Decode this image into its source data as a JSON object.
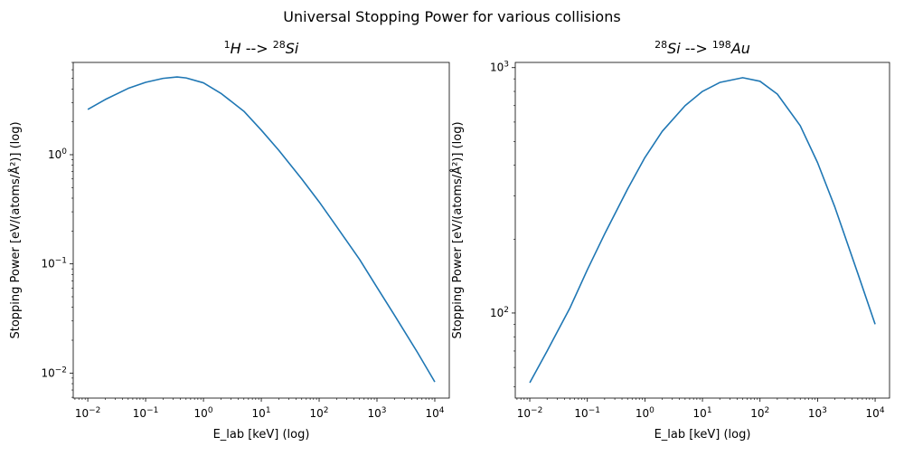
{
  "suptitle": "Universal Stopping Power for various collisions",
  "chart_data": [
    {
      "type": "line",
      "title_parts": [
        {
          "text": "1",
          "sup": true
        },
        {
          "text": "H",
          "italic": true
        },
        {
          "text": " --> "
        },
        {
          "text": "28",
          "sup": true
        },
        {
          "text": "Si",
          "italic": true
        }
      ],
      "xlabel": "E_lab [keV] (log)",
      "ylabel": "Stopping Power [eV/(atoms/Å²)] (log)",
      "xscale": "log",
      "yscale": "log",
      "xlim": [
        0.0056,
        17800
      ],
      "ylim": [
        0.0059,
        7.0
      ],
      "xticks": [
        {
          "value": 0.01,
          "mant": "10",
          "exp": "−2"
        },
        {
          "value": 0.1,
          "mant": "10",
          "exp": "−1"
        },
        {
          "value": 1,
          "mant": "10",
          "exp": "0"
        },
        {
          "value": 10,
          "mant": "10",
          "exp": "1"
        },
        {
          "value": 100,
          "mant": "10",
          "exp": "2"
        },
        {
          "value": 1000,
          "mant": "10",
          "exp": "3"
        },
        {
          "value": 10000,
          "mant": "10",
          "exp": "4"
        }
      ],
      "yticks": [
        {
          "value": 0.01,
          "mant": "10",
          "exp": "−2"
        },
        {
          "value": 0.1,
          "mant": "10",
          "exp": "−1"
        },
        {
          "value": 1,
          "mant": "10",
          "exp": "0"
        }
      ],
      "grid": false,
      "series": [
        {
          "color": "#1f77b4",
          "x": [
            0.01,
            0.02,
            0.05,
            0.1,
            0.2,
            0.35,
            0.5,
            1,
            2,
            5,
            10,
            20,
            50,
            100,
            200,
            500,
            1000,
            2000,
            5000,
            10000
          ],
          "y": [
            2.6,
            3.2,
            4.05,
            4.6,
            5.0,
            5.15,
            5.05,
            4.55,
            3.65,
            2.5,
            1.68,
            1.1,
            0.6,
            0.37,
            0.22,
            0.11,
            0.061,
            0.034,
            0.0155,
            0.0083
          ]
        }
      ]
    },
    {
      "type": "line",
      "title_parts": [
        {
          "text": "28",
          "sup": true
        },
        {
          "text": "Si",
          "italic": true
        },
        {
          "text": " --> "
        },
        {
          "text": "198",
          "sup": true
        },
        {
          "text": "Au",
          "italic": true
        }
      ],
      "xlabel": "E_lab [keV] (log)",
      "ylabel": "Stopping Power [eV/(atoms/Å²)] (log)",
      "xscale": "log",
      "yscale": "log",
      "xlim": [
        0.0056,
        17800
      ],
      "ylim": [
        45,
        1050
      ],
      "xticks": [
        {
          "value": 0.01,
          "mant": "10",
          "exp": "−2"
        },
        {
          "value": 0.1,
          "mant": "10",
          "exp": "−1"
        },
        {
          "value": 1,
          "mant": "10",
          "exp": "0"
        },
        {
          "value": 10,
          "mant": "10",
          "exp": "1"
        },
        {
          "value": 100,
          "mant": "10",
          "exp": "2"
        },
        {
          "value": 1000,
          "mant": "10",
          "exp": "3"
        },
        {
          "value": 10000,
          "mant": "10",
          "exp": "4"
        }
      ],
      "yticks": [
        {
          "value": 100,
          "mant": "10",
          "exp": "2"
        },
        {
          "value": 1000,
          "mant": "10",
          "exp": "3"
        }
      ],
      "grid": false,
      "series": [
        {
          "color": "#1f77b4",
          "x": [
            0.01,
            0.02,
            0.05,
            0.1,
            0.2,
            0.5,
            1,
            2,
            5,
            10,
            20,
            50,
            100,
            200,
            500,
            1000,
            2000,
            5000,
            10000
          ],
          "y": [
            52,
            70,
            105,
            150,
            210,
            320,
            430,
            550,
            700,
            800,
            870,
            910,
            880,
            780,
            580,
            410,
            270,
            145,
            90
          ]
        }
      ]
    }
  ]
}
